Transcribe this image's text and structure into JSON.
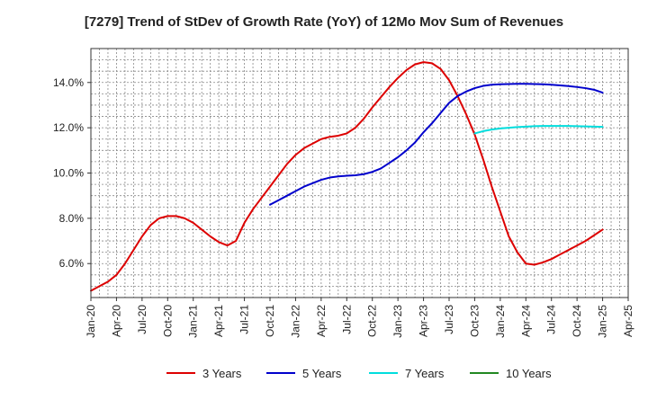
{
  "chart_data": {
    "type": "line",
    "title": "[7279]  Trend of StDev of Growth Rate (YoY) of 12Mo Mov Sum of Revenues",
    "xlabel": "",
    "ylabel": "",
    "ylim": [
      4.5,
      15.5
    ],
    "yticks": [
      6.0,
      8.0,
      10.0,
      12.0,
      14.0
    ],
    "ytick_labels": [
      "6.0%",
      "8.0%",
      "10.0%",
      "12.0%",
      "14.0%"
    ],
    "xlim": [
      0,
      63
    ],
    "xticks": [
      0,
      3,
      6,
      9,
      12,
      15,
      18,
      21,
      24,
      27,
      30,
      33,
      36,
      39,
      42,
      45,
      48,
      51,
      54,
      57,
      60,
      63
    ],
    "xtick_labels": [
      "Jan-20",
      "Apr-20",
      "Jul-20",
      "Oct-20",
      "Jan-21",
      "Apr-21",
      "Jul-21",
      "Oct-21",
      "Jan-22",
      "Apr-22",
      "Jul-22",
      "Oct-22",
      "Jan-23",
      "Apr-23",
      "Jul-23",
      "Oct-23",
      "Jan-24",
      "Apr-24",
      "Jul-24",
      "Oct-24",
      "Jan-25",
      "Apr-25"
    ],
    "grid": true,
    "legend_position": "bottom",
    "series": [
      {
        "name": "3 Years",
        "color": "#dd0000",
        "x": [
          0,
          1,
          2,
          3,
          4,
          5,
          6,
          7,
          8,
          9,
          10,
          11,
          12,
          13,
          14,
          15,
          16,
          17,
          18,
          19,
          20,
          21,
          22,
          23,
          24,
          25,
          26,
          27,
          28,
          29,
          30,
          31,
          32,
          33,
          34,
          35,
          36,
          37,
          38,
          39,
          40,
          41,
          42,
          43,
          44,
          45,
          46,
          47,
          48,
          49,
          50,
          51,
          52,
          53,
          54,
          55,
          56,
          57,
          58,
          59,
          60
        ],
        "values": [
          4.8,
          5.0,
          5.2,
          5.5,
          6.0,
          6.6,
          7.2,
          7.7,
          8.0,
          8.1,
          8.1,
          8.0,
          7.8,
          7.5,
          7.2,
          6.95,
          6.8,
          7.0,
          7.8,
          8.4,
          8.9,
          9.4,
          9.9,
          10.4,
          10.8,
          11.1,
          11.3,
          11.5,
          11.6,
          11.65,
          11.75,
          12.0,
          12.4,
          12.9,
          13.35,
          13.8,
          14.2,
          14.55,
          14.8,
          14.9,
          14.85,
          14.6,
          14.1,
          13.4,
          12.6,
          11.7,
          10.6,
          9.4,
          8.3,
          7.2,
          6.5,
          6.0,
          5.95,
          6.05,
          6.2,
          6.4,
          6.6,
          6.8,
          7.0,
          7.25,
          7.5
        ]
      },
      {
        "name": "5 Years",
        "color": "#0000cc",
        "x": [
          21,
          22,
          23,
          24,
          25,
          26,
          27,
          28,
          29,
          30,
          31,
          32,
          33,
          34,
          35,
          36,
          37,
          38,
          39,
          40,
          41,
          42,
          43,
          44,
          45,
          46,
          47,
          48,
          49,
          50,
          51,
          52,
          53,
          54,
          55,
          56,
          57,
          58,
          59,
          60
        ],
        "values": [
          8.6,
          8.8,
          9.0,
          9.2,
          9.4,
          9.55,
          9.7,
          9.8,
          9.85,
          9.88,
          9.9,
          9.95,
          10.05,
          10.2,
          10.45,
          10.7,
          11.0,
          11.35,
          11.8,
          12.2,
          12.65,
          13.1,
          13.4,
          13.6,
          13.75,
          13.85,
          13.9,
          13.92,
          13.93,
          13.94,
          13.94,
          13.93,
          13.92,
          13.9,
          13.87,
          13.84,
          13.8,
          13.75,
          13.68,
          13.55
        ]
      },
      {
        "name": "7 Years",
        "color": "#00dddd",
        "x": [
          45,
          46,
          47,
          48,
          49,
          50,
          51,
          52,
          53,
          54,
          55,
          56,
          57,
          58,
          59,
          60
        ],
        "values": [
          11.75,
          11.85,
          11.92,
          11.97,
          12.0,
          12.03,
          12.05,
          12.07,
          12.08,
          12.08,
          12.08,
          12.08,
          12.07,
          12.06,
          12.05,
          12.04
        ]
      },
      {
        "name": "10 Years",
        "color": "#228822",
        "x": [],
        "values": []
      }
    ]
  }
}
